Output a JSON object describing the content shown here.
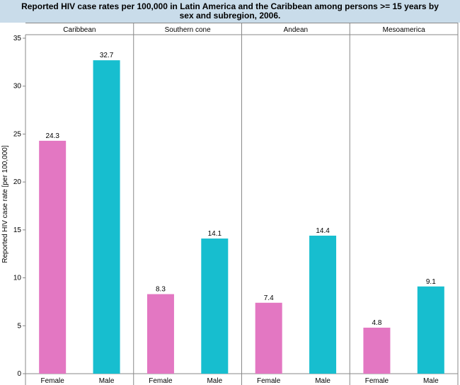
{
  "chart_data": {
    "type": "bar",
    "title": "Reported HIV case rates per 100,000 in Latin America and the Caribbean among persons >= 15 years by sex and subregion, 2006.",
    "ylabel": "Reported HIV case rate [per 100,000]",
    "xlabel": "",
    "ylim": [
      0,
      35
    ],
    "yticks": [
      0,
      5,
      10,
      15,
      20,
      25,
      30,
      35
    ],
    "categories": [
      "Female",
      "Male"
    ],
    "colors": {
      "Female": "#e377c2",
      "Male": "#17becf"
    },
    "panels": [
      {
        "name": "Caribbean",
        "values": [
          24.3,
          32.7
        ],
        "labels": [
          "24.3",
          "32.7"
        ]
      },
      {
        "name": "Southern cone",
        "values": [
          8.3,
          14.1
        ],
        "labels": [
          "8.3",
          "14.1"
        ]
      },
      {
        "name": "Andean",
        "values": [
          7.4,
          14.4
        ],
        "labels": [
          "7.4",
          "14.4"
        ]
      },
      {
        "name": "Mesoamerica",
        "values": [
          4.8,
          9.1
        ],
        "labels": [
          "4.8",
          "9.1"
        ]
      }
    ],
    "grid": false
  }
}
